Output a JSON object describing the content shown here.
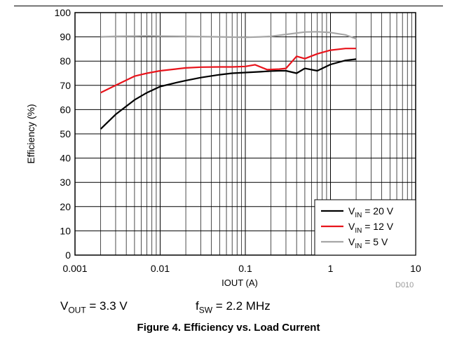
{
  "chart_data": {
    "type": "line",
    "title": "Figure 4. Efficiency vs. Load Current",
    "xlabel": "IOUT (A)",
    "ylabel": "Efficiency (%)",
    "xscale": "log",
    "xlim": [
      0.001,
      10
    ],
    "ylim": [
      0,
      100
    ],
    "grid": true,
    "legend_position": "bottom-right",
    "x_tick_labels": [
      "0.001",
      "0.01",
      "0.1",
      "1",
      "10"
    ],
    "y_tick_labels": [
      "0",
      "10",
      "20",
      "30",
      "40",
      "50",
      "60",
      "70",
      "80",
      "90",
      "100"
    ],
    "series": [
      {
        "name": "VIN = 20 V",
        "color": "#000000",
        "x": [
          0.002,
          0.003,
          0.005,
          0.007,
          0.01,
          0.015,
          0.02,
          0.03,
          0.05,
          0.07,
          0.1,
          0.15,
          0.2,
          0.25,
          0.3,
          0.4,
          0.5,
          0.7,
          0.8,
          1.0,
          1.5,
          2.0
        ],
        "y": [
          52,
          58,
          64,
          67,
          69.5,
          71,
          72,
          73.2,
          74.4,
          75,
          75.3,
          75.6,
          75.9,
          76,
          76,
          75,
          77,
          76,
          77,
          78.6,
          80.3,
          80.8
        ]
      },
      {
        "name": "VIN = 12 V",
        "color": "#e8141c",
        "x": [
          0.002,
          0.003,
          0.005,
          0.007,
          0.01,
          0.015,
          0.02,
          0.03,
          0.05,
          0.07,
          0.1,
          0.13,
          0.18,
          0.25,
          0.3,
          0.4,
          0.5,
          0.7,
          1.0,
          1.5,
          2.0
        ],
        "y": [
          67,
          70,
          73.8,
          75,
          76,
          76.7,
          77.2,
          77.5,
          77.6,
          77.6,
          77.8,
          78.5,
          76.5,
          76.7,
          77,
          82,
          81,
          83,
          84.5,
          85.2,
          85.2
        ]
      },
      {
        "name": "VIN = 5 V",
        "color": "#a6a6a6",
        "x": [
          0.002,
          0.003,
          0.005,
          0.007,
          0.01,
          0.02,
          0.05,
          0.1,
          0.15,
          0.2,
          0.3,
          0.5,
          0.7,
          1.0,
          1.5,
          2.0
        ],
        "y": [
          90,
          90.2,
          90.3,
          90.4,
          90.3,
          90.2,
          90,
          89.8,
          90,
          90.2,
          91,
          92,
          92.1,
          91.8,
          90.8,
          89.2
        ]
      }
    ]
  },
  "legend": [
    {
      "prefix": "V",
      "sub": "IN",
      "suffix": " = 20 V",
      "color": "#000000"
    },
    {
      "prefix": "V",
      "sub": "IN",
      "suffix": " = 12 V",
      "color": "#e8141c"
    },
    {
      "prefix": "V",
      "sub": "IN",
      "suffix": " = 5 V",
      "color": "#a6a6a6"
    }
  ],
  "notes": {
    "vout_main": "V",
    "vout_sub": "OUT",
    "vout_value": " = 3.3 V",
    "fsw_main": "f",
    "fsw_sub": "SW",
    "fsw_value": " = 2.2 MHz"
  },
  "figure_code": "D010"
}
